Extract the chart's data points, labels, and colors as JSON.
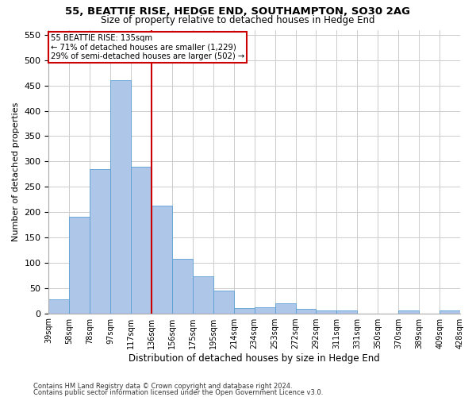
{
  "title": "55, BEATTIE RISE, HEDGE END, SOUTHAMPTON, SO30 2AG",
  "subtitle": "Size of property relative to detached houses in Hedge End",
  "xlabel": "Distribution of detached houses by size in Hedge End",
  "ylabel": "Number of detached properties",
  "bar_values": [
    28,
    190,
    285,
    460,
    290,
    213,
    108,
    73,
    45,
    11,
    12,
    20,
    8,
    5,
    5,
    0,
    0,
    5,
    0,
    5
  ],
  "bar_labels": [
    "39sqm",
    "58sqm",
    "78sqm",
    "97sqm",
    "117sqm",
    "136sqm",
    "156sqm",
    "175sqm",
    "195sqm",
    "214sqm",
    "234sqm",
    "253sqm",
    "272sqm",
    "292sqm",
    "311sqm",
    "331sqm",
    "350sqm",
    "370sqm",
    "389sqm",
    "409sqm",
    "428sqm"
  ],
  "bar_color": "#aec6e8",
  "bar_edge_color": "#5a9fd4",
  "red_line_bar_index": 5,
  "annotation_line1": "55 BEATTIE RISE: 135sqm",
  "annotation_line2": "← 71% of detached houses are smaller (1,229)",
  "annotation_line3": "29% of semi-detached houses are larger (502) →",
  "annotation_box_color": "#ffffff",
  "annotation_box_edge": "#cc0000",
  "red_line_color": "#cc0000",
  "ylim": [
    0,
    560
  ],
  "yticks": [
    0,
    50,
    100,
    150,
    200,
    250,
    300,
    350,
    400,
    450,
    500,
    550
  ],
  "footnote1": "Contains HM Land Registry data © Crown copyright and database right 2024.",
  "footnote2": "Contains public sector information licensed under the Open Government Licence v3.0.",
  "background_color": "#ffffff",
  "grid_color": "#cccccc"
}
